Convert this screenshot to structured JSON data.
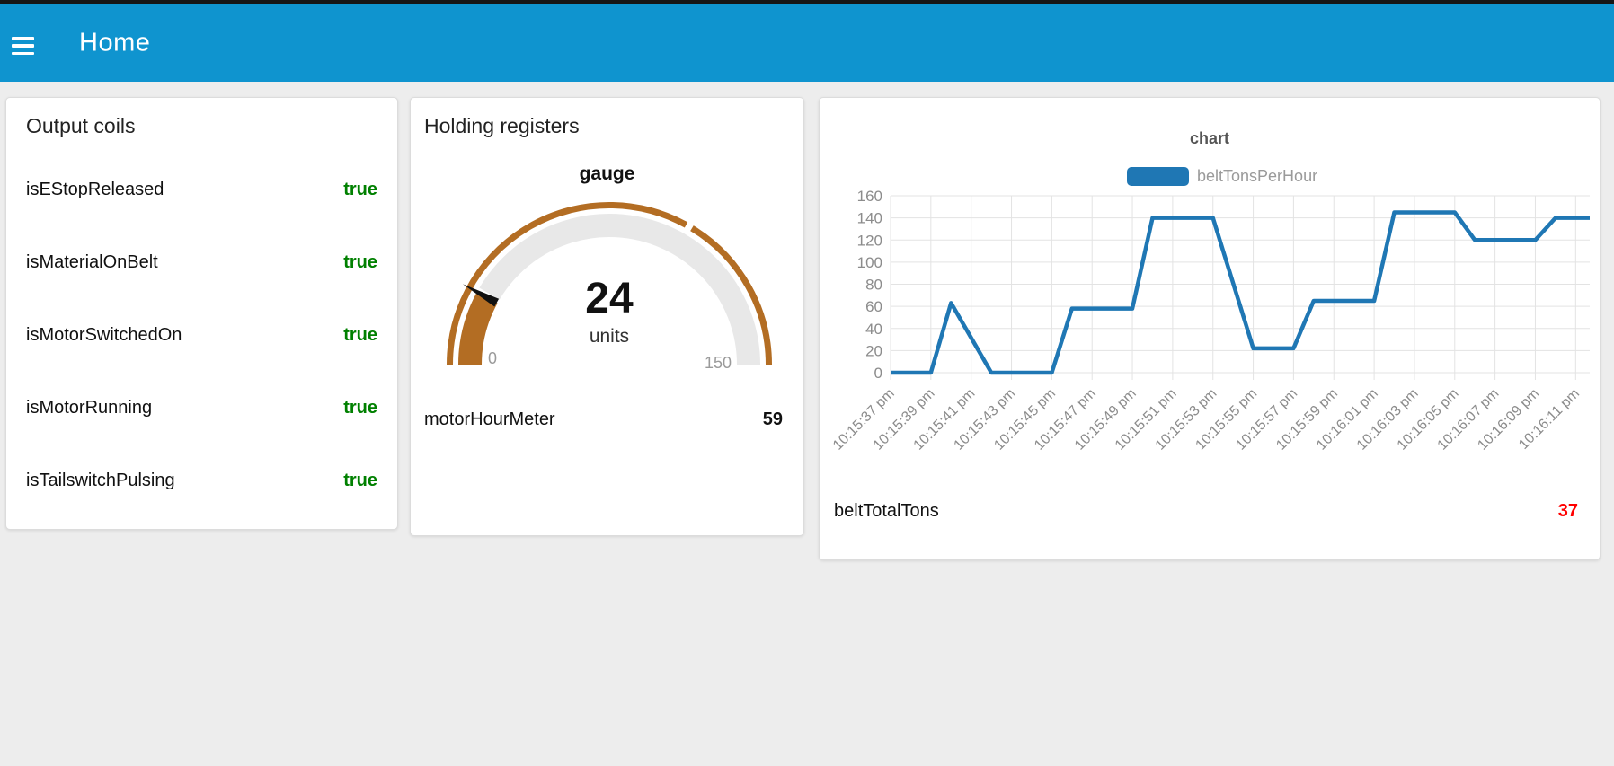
{
  "header": {
    "title": "Home",
    "menu_icon": "hamburger-icon"
  },
  "colors": {
    "header_bar": "#0f94cf",
    "true_green": "#008000",
    "alert_red": "#ff0000",
    "gauge_arc": "#b36d23",
    "gauge_track": "#e8e8e8",
    "needle": "#111111",
    "series_blue": "#1f77b4",
    "axis_text": "#8c8c8c",
    "grid_line": "#e3e3e3"
  },
  "output_coils": {
    "title": "Output coils",
    "rows": [
      {
        "label": "isEStopReleased",
        "value": "true"
      },
      {
        "label": "isMaterialOnBelt",
        "value": "true"
      },
      {
        "label": "isMotorSwitchedOn",
        "value": "true"
      },
      {
        "label": "isMotorRunning",
        "value": "true"
      },
      {
        "label": "isTailswitchPulsing",
        "value": "true"
      }
    ]
  },
  "holding_registers": {
    "title": "Holding registers",
    "gauge": {
      "title": "gauge",
      "value": 24,
      "value_text": "24",
      "units": "units",
      "min": 0,
      "max": 150,
      "min_label": "0",
      "max_label": "150",
      "sector_break": 100
    },
    "rows": [
      {
        "label": "motorHourMeter",
        "value": "59"
      }
    ]
  },
  "chart_card": {
    "rows": [
      {
        "label": "beltTotalTons",
        "value": "37"
      }
    ]
  },
  "chart_data": {
    "type": "line",
    "title": "chart",
    "legend_position": "top-center",
    "grid": true,
    "x_axis": {
      "tick_seconds": [
        0,
        2,
        4,
        6,
        8,
        10,
        12,
        14,
        16,
        18,
        20,
        22,
        24,
        26,
        28,
        30,
        32,
        34
      ],
      "tick_labels": [
        "10:15:37 pm",
        "10:15:39 pm",
        "10:15:41 pm",
        "10:15:43 pm",
        "10:15:45 pm",
        "10:15:47 pm",
        "10:15:49 pm",
        "10:15:51 pm",
        "10:15:53 pm",
        "10:15:55 pm",
        "10:15:57 pm",
        "10:15:59 pm",
        "10:16:01 pm",
        "10:16:03 pm",
        "10:16:05 pm",
        "10:16:07 pm",
        "10:16:09 pm",
        "10:16:11 pm"
      ],
      "range_seconds": [
        0,
        34.7
      ]
    },
    "y_axis": {
      "ticks": [
        0,
        20,
        40,
        60,
        80,
        100,
        120,
        140,
        160
      ],
      "range": [
        0,
        160
      ]
    },
    "series": [
      {
        "name": "beltTonsPerHour",
        "color": "#1f77b4",
        "points_sec_value": [
          [
            0,
            0
          ],
          [
            2,
            0
          ],
          [
            3,
            63
          ],
          [
            5,
            0
          ],
          [
            8,
            0
          ],
          [
            9,
            58
          ],
          [
            12,
            58
          ],
          [
            13,
            140
          ],
          [
            16,
            140
          ],
          [
            18,
            22
          ],
          [
            20,
            22
          ],
          [
            21,
            65
          ],
          [
            24,
            65
          ],
          [
            25,
            145
          ],
          [
            28,
            145
          ],
          [
            29,
            120
          ],
          [
            32,
            120
          ],
          [
            33,
            140
          ],
          [
            34.7,
            140
          ]
        ]
      }
    ]
  }
}
